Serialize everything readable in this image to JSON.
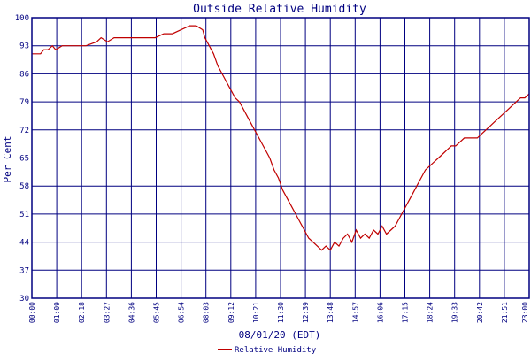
{
  "chart_data": {
    "type": "line",
    "title": "Outside Relative Humidity",
    "ylabel": "Per Cent",
    "xlabel": "08/01/20 (EDT)",
    "ylim": [
      30,
      100
    ],
    "y_ticks": [
      "30",
      "37",
      "44",
      "51",
      "58",
      "65",
      "72",
      "79",
      "86",
      "93",
      "100"
    ],
    "x_ticks": [
      "00:00",
      "01:09",
      "02:18",
      "03:27",
      "04:36",
      "05:45",
      "06:54",
      "08:03",
      "09:12",
      "10:21",
      "11:30",
      "12:39",
      "13:48",
      "14:57",
      "16:06",
      "17:15",
      "18:24",
      "19:33",
      "20:42",
      "21:51",
      "23:00"
    ],
    "x_tick_hours": [
      0,
      1.15,
      2.3,
      3.45,
      4.6,
      5.75,
      6.9,
      8.05,
      9.2,
      10.35,
      11.5,
      12.65,
      13.8,
      14.95,
      16.1,
      17.25,
      18.4,
      19.55,
      20.7,
      21.85,
      23.0
    ],
    "x_range_hours": [
      0,
      23.0
    ],
    "grid": true,
    "legend_position": "bottom-center",
    "series": [
      {
        "name": "Relative Humidity",
        "color": "#c00000",
        "x_hours": [
          0,
          0.4,
          0.55,
          0.75,
          0.95,
          1.1,
          1.4,
          2.0,
          2.5,
          3.0,
          3.2,
          3.5,
          3.8,
          4.3,
          5.0,
          5.7,
          6.1,
          6.5,
          6.9,
          7.3,
          7.6,
          7.9,
          8.0,
          8.2,
          8.4,
          8.6,
          8.8,
          9.0,
          9.2,
          9.4,
          9.6,
          9.8,
          10.0,
          10.2,
          10.4,
          10.6,
          10.8,
          11.0,
          11.2,
          11.4,
          11.6,
          11.8,
          12.0,
          12.2,
          12.4,
          12.6,
          12.8,
          13.0,
          13.2,
          13.4,
          13.6,
          13.8,
          14.0,
          14.2,
          14.4,
          14.6,
          14.8,
          15.0,
          15.2,
          15.4,
          15.6,
          15.8,
          16.0,
          16.2,
          16.4,
          16.6,
          16.8,
          17.0,
          17.2,
          17.4,
          17.6,
          17.8,
          18.0,
          18.2,
          18.4,
          18.6,
          18.8,
          19.0,
          19.2,
          19.4,
          19.6,
          19.8,
          20.0,
          20.2,
          20.4,
          20.6,
          20.8,
          21.0,
          21.2,
          21.4,
          21.6,
          21.8,
          22.0,
          22.2,
          22.4,
          22.6,
          22.8,
          23.0
        ],
        "values": [
          91,
          91,
          92,
          92,
          93,
          92,
          93,
          93,
          93,
          94,
          95,
          94,
          95,
          95,
          95,
          95,
          96,
          96,
          97,
          98,
          98,
          97,
          95,
          93,
          91,
          88,
          86,
          84,
          82,
          80,
          79,
          77,
          75,
          73,
          71,
          69,
          67,
          65,
          62,
          60,
          57,
          55,
          53,
          51,
          49,
          47,
          45,
          44,
          43,
          42,
          43,
          42,
          44,
          43,
          45,
          46,
          44,
          47,
          45,
          46,
          45,
          47,
          46,
          48,
          46,
          47,
          48,
          50,
          52,
          54,
          56,
          58,
          60,
          62,
          63,
          64,
          65,
          66,
          67,
          68,
          68,
          69,
          70,
          70,
          70,
          70,
          71,
          72,
          73,
          74,
          75,
          76,
          77,
          78,
          79,
          80,
          80,
          81
        ]
      }
    ]
  }
}
